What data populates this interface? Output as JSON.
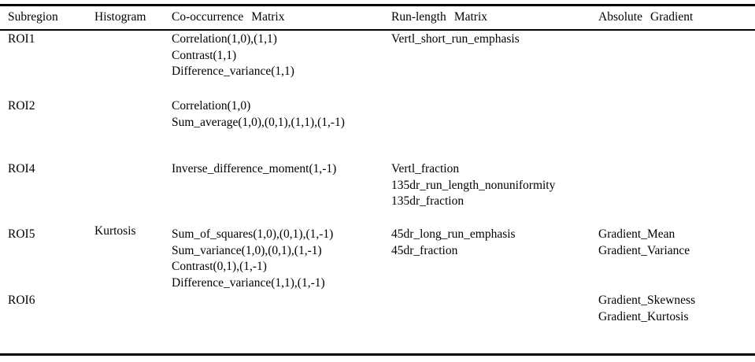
{
  "table": {
    "columns": [
      {
        "id": "subregion",
        "label": "Subregion"
      },
      {
        "id": "histogram",
        "label": "Histogram"
      },
      {
        "id": "cooccurrence",
        "label": "Co-occurrence Matrix"
      },
      {
        "id": "runlength",
        "label": "Run-length Matrix"
      },
      {
        "id": "gradient",
        "label": "Absolute Gradient"
      }
    ],
    "rows": [
      {
        "subregion": "ROI1",
        "histogram": [],
        "cooccurrence": [
          "Correlation(1,0),(1,1)",
          "Contrast(1,1)",
          "Difference_variance(1,1)"
        ],
        "runlength": [
          "Vertl_short_run_emphasis"
        ],
        "gradient": []
      },
      {
        "subregion": "ROI2",
        "histogram": [],
        "cooccurrence": [
          "Correlation(1,0)",
          "Sum_average(1,0),(0,1),(1,1),(1,-1)"
        ],
        "runlength": [],
        "gradient": []
      },
      {
        "subregion": "ROI4",
        "histogram": [],
        "cooccurrence": [
          "Inverse_difference_moment(1,-1)"
        ],
        "runlength": [
          "Vertl_fraction",
          "135dr_run_length_nonuniformity",
          "135dr_fraction"
        ],
        "gradient": []
      },
      {
        "subregion": "ROI5",
        "histogram": [
          "Kurtosis"
        ],
        "cooccurrence": [
          "Sum_of_squares(1,0),(0,1),(1,-1)",
          "Sum_variance(1,0),(0,1),(1,-1)",
          "Contrast(0,1),(1,-1)",
          "Difference_variance(1,1),(1,-1)"
        ],
        "runlength": [
          "45dr_long_run_emphasis",
          "45dr_fraction"
        ],
        "gradient": [
          "Gradient_Mean",
          "Gradient_Variance"
        ]
      },
      {
        "subregion": "ROI6",
        "histogram": [],
        "cooccurrence": [],
        "runlength": [],
        "gradient": [
          "Gradient_Skewness",
          "Gradient_Kurtosis"
        ]
      }
    ]
  },
  "colors": {
    "background": "#ffffff",
    "text": "#000000",
    "rule": "#000000"
  }
}
